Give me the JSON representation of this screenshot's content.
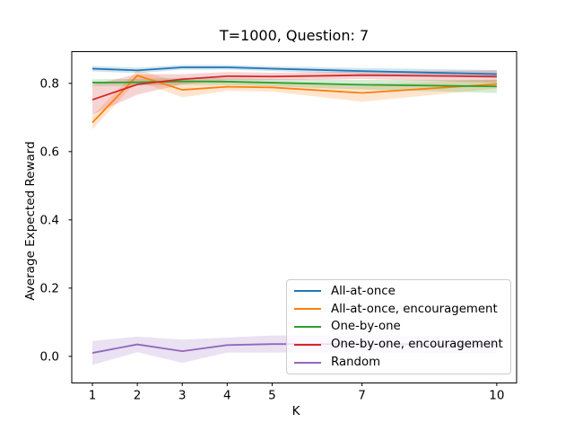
{
  "chart_data": {
    "type": "line",
    "title": "T=1000, Question: 7",
    "xlabel": "K",
    "ylabel": "Average Expected Reward",
    "x": [
      1,
      2,
      3,
      4,
      5,
      7,
      10
    ],
    "xticks": [
      1,
      2,
      3,
      4,
      5,
      7,
      10
    ],
    "xtick_labels": [
      "1",
      "2",
      "3",
      "4",
      "5",
      "7",
      "10"
    ],
    "yticks": [
      0.0,
      0.2,
      0.4,
      0.6,
      0.8
    ],
    "ytick_labels": [
      "0.0",
      "0.2",
      "0.4",
      "0.6",
      "0.8"
    ],
    "xlim": [
      0.541,
      10.441
    ],
    "ylim": [
      -0.078,
      0.893
    ],
    "grid": false,
    "legend_position": "lower-right-inside",
    "band_opacity": 0.2,
    "axis_color": "#000000",
    "series": [
      {
        "name": "All-at-once",
        "color": "#1f77b4",
        "values": [
          0.843,
          0.838,
          0.847,
          0.847,
          0.843,
          0.836,
          0.827
        ],
        "std": [
          0.008,
          0.008,
          0.007,
          0.007,
          0.007,
          0.009,
          0.012
        ]
      },
      {
        "name": "All-at-once, encouragement",
        "color": "#ff7f0e",
        "values": [
          0.685,
          0.823,
          0.781,
          0.79,
          0.788,
          0.772,
          0.798
        ],
        "std": [
          0.02,
          0.016,
          0.022,
          0.012,
          0.012,
          0.026,
          0.013
        ]
      },
      {
        "name": "One-by-one",
        "color": "#2ca02c",
        "values": [
          0.802,
          0.803,
          0.806,
          0.805,
          0.802,
          0.796,
          0.791
        ],
        "std": [
          0.01,
          0.01,
          0.01,
          0.01,
          0.011,
          0.014,
          0.019
        ]
      },
      {
        "name": "One-by-one, encouragement",
        "color": "#d62728",
        "values": [
          0.752,
          0.797,
          0.812,
          0.821,
          0.82,
          0.824,
          0.82
        ],
        "std": [
          0.044,
          0.03,
          0.015,
          0.012,
          0.011,
          0.011,
          0.018
        ]
      },
      {
        "name": "Random",
        "color": "#9467bd",
        "values": [
          0.01,
          0.035,
          0.015,
          0.033,
          0.036,
          0.036,
          0.034
        ],
        "std": [
          0.035,
          0.023,
          0.034,
          0.022,
          0.025,
          0.025,
          0.025
        ]
      }
    ]
  }
}
